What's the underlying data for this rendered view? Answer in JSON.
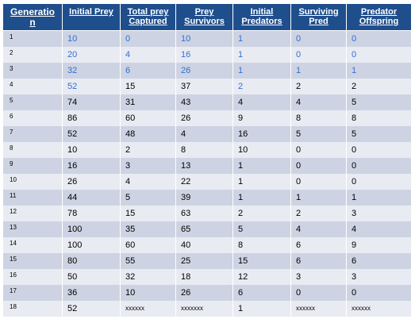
{
  "colors": {
    "header_bg": "#1f4e8c",
    "row_dark": "#cdd3e2",
    "row_light": "#e9ebf3",
    "blue_text": "#2f6fd0"
  },
  "headers": {
    "generation": [
      "Generatio",
      "n"
    ],
    "initial_prey": [
      "Initial Prey"
    ],
    "total_prey_captured": [
      "Total prey",
      "Captured"
    ],
    "prey_survivors": [
      "Prey",
      "Survivors"
    ],
    "initial_predators": [
      "Initial",
      "Predators"
    ],
    "surviving_pred": [
      "Surviving",
      "Pred"
    ],
    "predator_offspring": [
      "Predator",
      "Offspring"
    ]
  },
  "rows": [
    {
      "gen": "1",
      "cells": [
        "10",
        "0",
        "10",
        "1",
        "0",
        "0"
      ],
      "blue": [
        true,
        true,
        true,
        true,
        true,
        true
      ]
    },
    {
      "gen": "2",
      "cells": [
        "20",
        "4",
        "16",
        "1",
        "0",
        "0"
      ],
      "blue": [
        true,
        true,
        true,
        true,
        true,
        true
      ]
    },
    {
      "gen": "3",
      "cells": [
        "32",
        "6",
        "26",
        "1",
        "1",
        "1"
      ],
      "blue": [
        true,
        true,
        true,
        true,
        true,
        true
      ]
    },
    {
      "gen": "4",
      "cells": [
        "52",
        "15",
        "37",
        "2",
        "2",
        "2"
      ],
      "blue": [
        true,
        false,
        false,
        true,
        false,
        false
      ]
    },
    {
      "gen": "5",
      "cells": [
        "74",
        "31",
        "43",
        "4",
        "4",
        "5"
      ]
    },
    {
      "gen": "6",
      "cells": [
        "86",
        "60",
        "26",
        "9",
        "8",
        "8"
      ]
    },
    {
      "gen": "7",
      "cells": [
        "52",
        "48",
        "4",
        "16",
        "5",
        "5"
      ]
    },
    {
      "gen": "8",
      "cells": [
        "10",
        "2",
        "8",
        "10",
        "0",
        "0"
      ]
    },
    {
      "gen": "9",
      "cells": [
        "16",
        "3",
        "13",
        "1",
        "0",
        "0"
      ]
    },
    {
      "gen": "10",
      "cells": [
        "26",
        "4",
        "22",
        "1",
        "0",
        "0"
      ]
    },
    {
      "gen": "11",
      "cells": [
        "44",
        "5",
        "39",
        "1",
        "1",
        "1"
      ]
    },
    {
      "gen": "12",
      "cells": [
        "78",
        "15",
        "63",
        "2",
        "2",
        "3"
      ]
    },
    {
      "gen": "13",
      "cells": [
        "100",
        "35",
        "65",
        "5",
        "4",
        "4"
      ]
    },
    {
      "gen": "14",
      "cells": [
        "100",
        "60",
        "40",
        "8",
        "6",
        "9"
      ]
    },
    {
      "gen": "15",
      "cells": [
        "80",
        "55",
        "25",
        "15",
        "6",
        "6"
      ]
    },
    {
      "gen": "16",
      "cells": [
        "50",
        "32",
        "18",
        "12",
        "3",
        "3"
      ]
    },
    {
      "gen": "17",
      "cells": [
        "36",
        "10",
        "26",
        "6",
        "0",
        "0"
      ]
    },
    {
      "gen": "18",
      "cells": [
        "52",
        "xxxxxx",
        "xxxxxxx",
        "1",
        "xxxxxx",
        "xxxxxx"
      ]
    }
  ]
}
